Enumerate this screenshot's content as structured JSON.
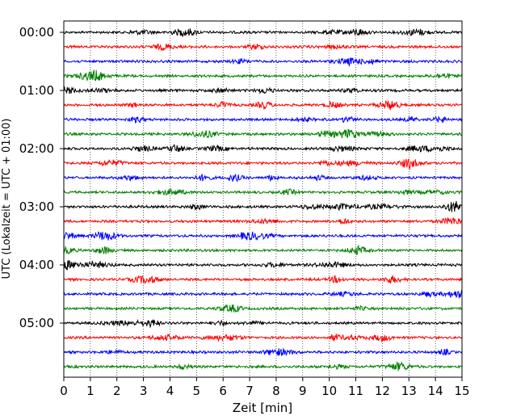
{
  "chart_data": {
    "type": "line",
    "subtype": "dayplot",
    "xlabel": "Zeit  [min]",
    "ylabel": "UTC (Lokalzeit = UTC + 01:00)",
    "xlim": [
      0,
      15
    ],
    "x_ticks": [
      0,
      1,
      2,
      3,
      4,
      5,
      6,
      7,
      8,
      9,
      10,
      11,
      12,
      13,
      14,
      15
    ],
    "y_tick_labels": [
      "00:00",
      "01:00",
      "02:00",
      "03:00",
      "04:00",
      "05:00"
    ],
    "grid": "vertical dotted",
    "legend": "none",
    "color_cycle": [
      "#000000",
      "#ff0000",
      "#0000ff",
      "#008000"
    ],
    "traces_count": 24,
    "trace_interval_min": 15,
    "traces": [
      {
        "start": "00:00",
        "color": "#000000"
      },
      {
        "start": "00:15",
        "color": "#ff0000"
      },
      {
        "start": "00:30",
        "color": "#0000ff"
      },
      {
        "start": "00:45",
        "color": "#008000"
      },
      {
        "start": "01:00",
        "color": "#000000"
      },
      {
        "start": "01:15",
        "color": "#ff0000"
      },
      {
        "start": "01:30",
        "color": "#0000ff"
      },
      {
        "start": "01:45",
        "color": "#008000"
      },
      {
        "start": "02:00",
        "color": "#000000"
      },
      {
        "start": "02:15",
        "color": "#ff0000"
      },
      {
        "start": "02:30",
        "color": "#0000ff"
      },
      {
        "start": "02:45",
        "color": "#008000"
      },
      {
        "start": "03:00",
        "color": "#000000"
      },
      {
        "start": "03:15",
        "color": "#ff0000"
      },
      {
        "start": "03:30",
        "color": "#0000ff"
      },
      {
        "start": "03:45",
        "color": "#008000"
      },
      {
        "start": "04:00",
        "color": "#000000"
      },
      {
        "start": "04:15",
        "color": "#ff0000"
      },
      {
        "start": "04:30",
        "color": "#0000ff"
      },
      {
        "start": "04:45",
        "color": "#008000"
      },
      {
        "start": "05:00",
        "color": "#000000"
      },
      {
        "start": "05:15",
        "color": "#ff0000"
      },
      {
        "start": "05:30",
        "color": "#0000ff"
      },
      {
        "start": "05:45",
        "color": "#008000"
      }
    ]
  }
}
